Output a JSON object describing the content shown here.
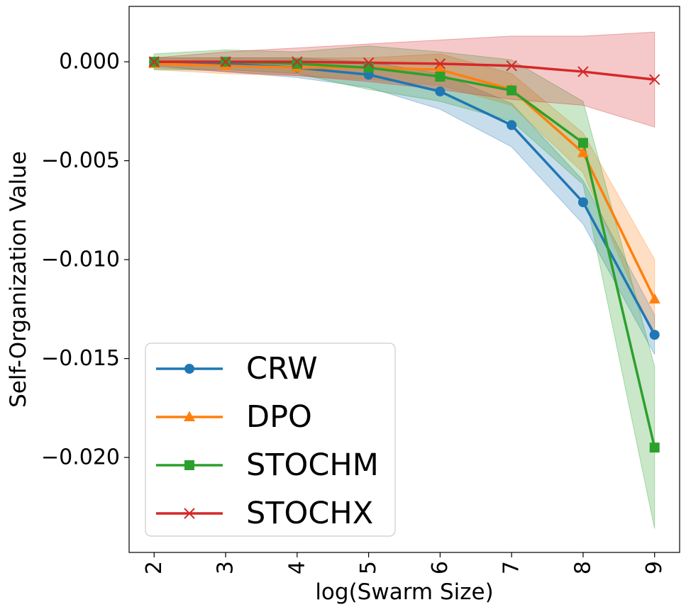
{
  "chart_data": {
    "type": "line",
    "title": "",
    "xlabel": "log(Swarm Size)",
    "ylabel": "Self-Organization Value",
    "x": [
      2,
      3,
      4,
      5,
      6,
      7,
      8,
      9
    ],
    "xlim": [
      1.65,
      9.35
    ],
    "ylim": [
      -0.0248,
      0.0028
    ],
    "xticks": [
      2,
      3,
      4,
      5,
      6,
      7,
      8,
      9
    ],
    "xtick_labels": [
      "2",
      "3",
      "4",
      "5",
      "6",
      "7",
      "8",
      "9"
    ],
    "yticks": [
      0.0,
      -0.005,
      -0.01,
      -0.015,
      -0.02
    ],
    "ytick_labels": [
      "0.000",
      "−0.005",
      "−0.010",
      "−0.015",
      "−0.020"
    ],
    "grid": false,
    "legend_position": "bottom-left",
    "series": [
      {
        "name": "CRW",
        "color": "#1f77b4",
        "marker": "circle",
        "values": [
          0.0,
          -0.0001,
          -0.0003,
          -0.00065,
          -0.0015,
          -0.0032,
          -0.0071,
          -0.0138
        ],
        "lower": [
          -0.0003,
          -0.0005,
          -0.0008,
          -0.0013,
          -0.0024,
          -0.0043,
          -0.0082,
          -0.0148
        ],
        "upper": [
          0.0002,
          0.0002,
          0.0002,
          0.0,
          -0.0006,
          -0.0021,
          -0.006,
          -0.0128
        ]
      },
      {
        "name": "DPO",
        "color": "#ff7f0e",
        "marker": "triangle",
        "values": [
          -0.0001,
          -0.0002,
          -0.0003,
          -0.0003,
          -0.0004,
          -0.0014,
          -0.0046,
          -0.012
        ],
        "lower": [
          -0.0004,
          -0.0006,
          -0.0007,
          -0.0009,
          -0.0012,
          -0.0022,
          -0.0056,
          -0.014
        ],
        "upper": [
          0.0002,
          0.0002,
          0.0002,
          0.0002,
          0.0004,
          -0.0006,
          -0.0036,
          -0.01
        ]
      },
      {
        "name": "STOCHM",
        "color": "#2ca02c",
        "marker": "square",
        "values": [
          0.0,
          0.0,
          -0.0001,
          -0.0003,
          -0.00075,
          -0.00145,
          -0.0041,
          -0.0195
        ],
        "lower": [
          -0.0004,
          -0.0004,
          -0.0006,
          -0.0014,
          -0.002,
          -0.003,
          -0.0062,
          -0.0236
        ],
        "upper": [
          0.0004,
          0.0006,
          0.0005,
          0.0008,
          0.0005,
          0.0001,
          -0.002,
          -0.0154
        ]
      },
      {
        "name": "STOCHX",
        "color": "#d62728",
        "marker": "x",
        "values": [
          0.0,
          0.0,
          0.0,
          -5e-05,
          -0.0001,
          -0.0002,
          -0.0005,
          -0.0009
        ],
        "lower": [
          -0.0002,
          -0.0005,
          -0.0007,
          -0.001,
          -0.0014,
          -0.0019,
          -0.0022,
          -0.0033
        ],
        "upper": [
          0.0002,
          0.0005,
          0.0007,
          0.0009,
          0.0011,
          0.0013,
          0.0013,
          0.0015
        ]
      }
    ]
  }
}
